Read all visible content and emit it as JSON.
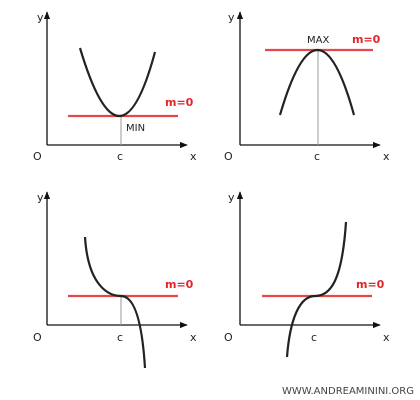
{
  "panels": [
    {
      "y_label": "y",
      "origin_label": "O",
      "x_label": "x",
      "c_label": "c",
      "slope_label": "m=0",
      "annotation": "MIN"
    },
    {
      "y_label": "y",
      "origin_label": "O",
      "x_label": "x",
      "c_label": "c",
      "slope_label": "m=0",
      "annotation": "MAX"
    },
    {
      "y_label": "y",
      "origin_label": "O",
      "x_label": "x",
      "c_label": "c",
      "slope_label": "m=0"
    },
    {
      "y_label": "y",
      "origin_label": "O",
      "x_label": "x",
      "c_label": "c",
      "slope_label": "m=0"
    }
  ],
  "footer": "WWW.ANDREAMININI.ORG"
}
